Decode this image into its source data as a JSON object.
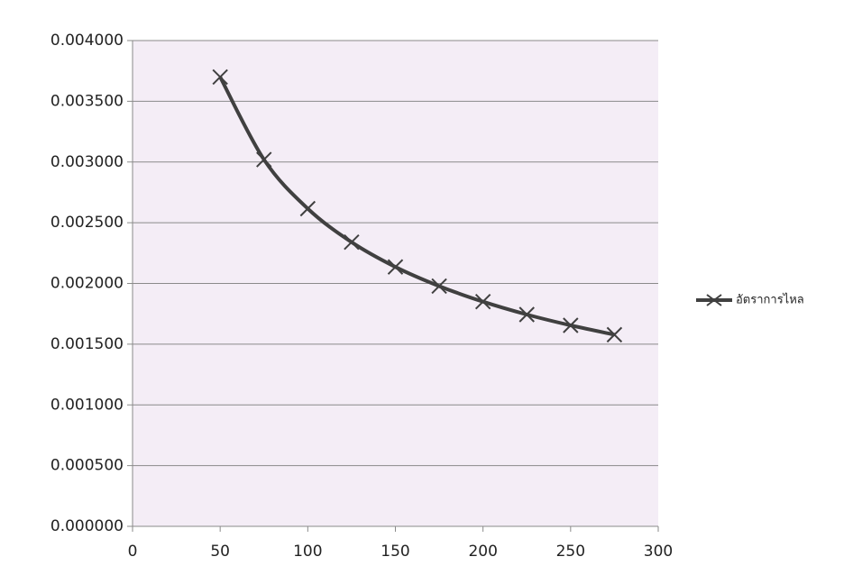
{
  "chart_data": {
    "type": "line",
    "x": [
      50,
      75,
      100,
      125,
      150,
      175,
      200,
      225,
      250,
      275
    ],
    "series": [
      {
        "name": "อัตราการไหล",
        "color": "#404040",
        "values": [
          0.0037,
          0.00302,
          0.002616,
          0.00234,
          0.002136,
          0.001978,
          0.00185,
          0.001744,
          0.001655,
          0.001578
        ]
      }
    ],
    "xlim": [
      0,
      300
    ],
    "xticks": [
      0,
      50,
      100,
      150,
      200,
      250,
      300
    ],
    "ylim": [
      0,
      0.004
    ],
    "yticks": [
      {
        "value": 0,
        "label": "0.000000"
      },
      {
        "value": 0.0005,
        "label": "0.000500"
      },
      {
        "value": 0.001,
        "label": "0.001000"
      },
      {
        "value": 0.0015,
        "label": "0.001500"
      },
      {
        "value": 0.002,
        "label": "0.002000"
      },
      {
        "value": 0.0025,
        "label": "0.002500"
      },
      {
        "value": 0.003,
        "label": "0.003000"
      },
      {
        "value": 0.0035,
        "label": "0.003500"
      },
      {
        "value": 0.004,
        "label": "0.004000"
      }
    ],
    "grid": true,
    "legend": "right",
    "plot_background": "#f4edf6"
  }
}
